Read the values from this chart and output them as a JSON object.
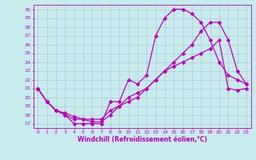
{
  "xlabel": "Windchill (Refroidissement éolien,°C)",
  "bg_color": "#c8ecee",
  "line_color": "#bb00bb",
  "grid_color": "#b0c8d0",
  "xlim": [
    -0.5,
    23.5
  ],
  "ylim": [
    16.5,
    30.5
  ],
  "xticks": [
    0,
    1,
    2,
    3,
    4,
    5,
    6,
    7,
    8,
    9,
    10,
    11,
    12,
    13,
    14,
    15,
    16,
    17,
    18,
    19,
    20,
    21,
    22,
    23
  ],
  "yticks": [
    17,
    18,
    19,
    20,
    21,
    22,
    23,
    24,
    25,
    26,
    27,
    28,
    29,
    30
  ],
  "line1_x": [
    0,
    1,
    2,
    3,
    4,
    5,
    6,
    7,
    8,
    9,
    10,
    11,
    12,
    13,
    14,
    15,
    16,
    17,
    18,
    19,
    20,
    21,
    22,
    23
  ],
  "line1_y": [
    21,
    19.5,
    18.5,
    18.0,
    17.0,
    17.0,
    17.0,
    17.0,
    19.5,
    19.5,
    22.0,
    21.5,
    22.5,
    27.0,
    29.0,
    30.0,
    30.0,
    29.5,
    28.5,
    26.5,
    24.0,
    22.5,
    22.0,
    21.5
  ],
  "line2_x": [
    0,
    1,
    2,
    3,
    4,
    5,
    6,
    7,
    8,
    9,
    10,
    11,
    12,
    13,
    14,
    15,
    16,
    17,
    18,
    19,
    20,
    21,
    22,
    23
  ],
  "line2_y": [
    21,
    19.5,
    18.5,
    18.2,
    17.8,
    17.5,
    17.2,
    17.2,
    18.0,
    19.0,
    19.5,
    20.0,
    21.0,
    22.0,
    23.0,
    23.5,
    24.0,
    24.5,
    25.0,
    25.5,
    26.5,
    21.0,
    20.8,
    21.0
  ],
  "line3_x": [
    0,
    1,
    2,
    3,
    4,
    5,
    6,
    7,
    8,
    9,
    10,
    11,
    12,
    13,
    14,
    15,
    16,
    17,
    18,
    19,
    20,
    21,
    22,
    23
  ],
  "line3_y": [
    21,
    19.5,
    18.5,
    18.0,
    17.5,
    17.5,
    17.5,
    17.5,
    18.5,
    19.0,
    20.0,
    20.5,
    21.0,
    22.0,
    23.0,
    24.0,
    25.0,
    26.0,
    27.5,
    28.5,
    28.5,
    26.5,
    23.0,
    21.5
  ],
  "marker_size": 2.5,
  "line_width": 0.9,
  "tick_fontsize": 4.5,
  "xlabel_fontsize": 5.5
}
